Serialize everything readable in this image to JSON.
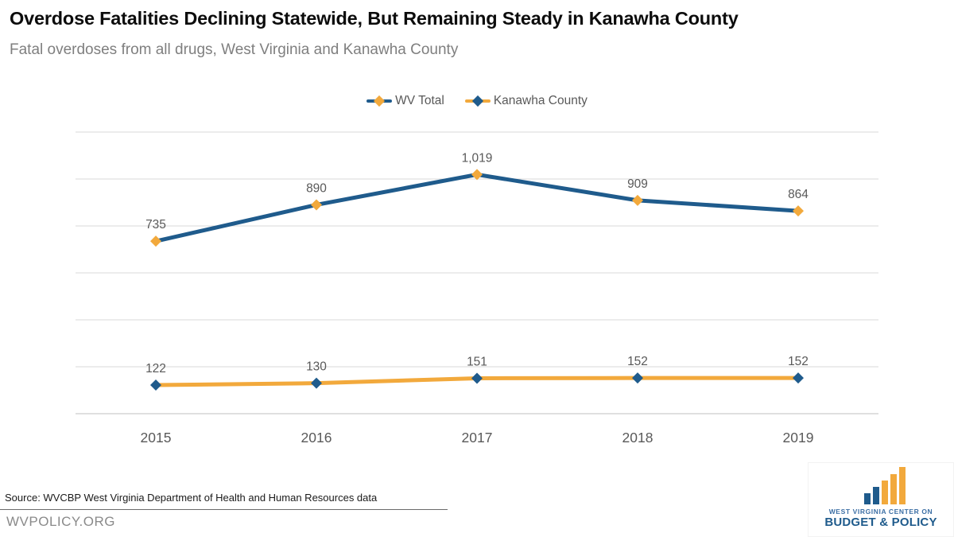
{
  "header": {
    "title": "Overdose Fatalities Declining Statewide, But Remaining Steady in Kanawha County",
    "subtitle": "Fatal overdoses from all drugs, West Virginia and Kanawha County"
  },
  "legend": {
    "items": [
      {
        "label": "WV Total",
        "line_color": "#1f5b8c",
        "marker_color": "#f2a93c"
      },
      {
        "label": "Kanawha County",
        "line_color": "#f2a93c",
        "marker_color": "#1f5b8c"
      }
    ]
  },
  "chart_data": {
    "type": "line",
    "x": [
      "2015",
      "2016",
      "2017",
      "2018",
      "2019"
    ],
    "series": [
      {
        "name": "WV Total",
        "values": [
          735,
          890,
          1019,
          909,
          864
        ],
        "labels": [
          "735",
          "890",
          "1,019",
          "909",
          "864"
        ],
        "line_color": "#1f5b8c",
        "marker_color": "#f2a93c",
        "marker": "diamond"
      },
      {
        "name": "Kanawha County",
        "values": [
          122,
          130,
          151,
          152,
          152
        ],
        "labels": [
          "122",
          "130",
          "151",
          "152",
          "152"
        ],
        "line_color": "#f2a93c",
        "marker_color": "#1f5b8c",
        "marker": "diamond"
      }
    ],
    "title": "Overdose Fatalities Declining Statewide, But Remaining Steady in Kanawha County",
    "xlabel": "",
    "ylabel": "",
    "ylim": [
      0,
      1200
    ],
    "gridline_step": 200,
    "grid": true,
    "y_axis_labels_visible": false,
    "legend_position": "top",
    "data_labels": true
  },
  "footer": {
    "source": "Source: WVCBP West Virginia Department of Health and Human Resources data",
    "website": "WVPOLICY.ORG"
  },
  "logo": {
    "line1": "WEST VIRGINIA CENTER ON",
    "line2": "BUDGET & POLICY"
  },
  "colors": {
    "wv_blue": "#1f5b8c",
    "wv_gold": "#f2a93c",
    "gridline": "#d9d9d9",
    "axis": "#bfbfbf",
    "data_label": "#595959",
    "axis_label": "#595959",
    "subtitle": "#7f7f7f"
  }
}
